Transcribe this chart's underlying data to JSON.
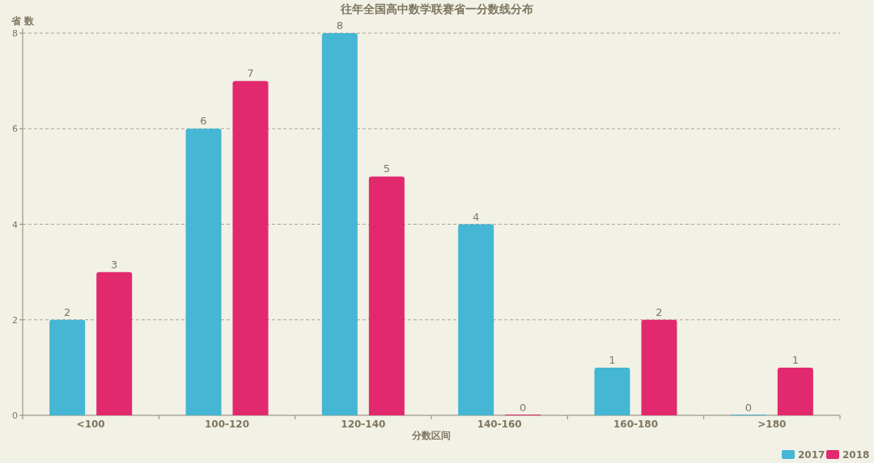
{
  "chart_data": {
    "type": "bar",
    "title": "往年全国高中数学联赛省一分数线分布",
    "xlabel": "分数区间",
    "ylabel": "省 数",
    "categories": [
      "<100",
      "100-120",
      "120-140",
      "140-160",
      "160-180",
      ">180"
    ],
    "series": [
      {
        "name": "2017",
        "color": "#45b6d4",
        "values": [
          2,
          6,
          8,
          4,
          1,
          0
        ]
      },
      {
        "name": "2018",
        "color": "#e2296d",
        "values": [
          3,
          7,
          5,
          0,
          2,
          1
        ]
      }
    ],
    "ylim": [
      0,
      8
    ],
    "yticks": [
      0,
      2,
      4,
      6,
      8
    ],
    "grid": "y",
    "legend": "bottom right",
    "data_labels": true
  }
}
